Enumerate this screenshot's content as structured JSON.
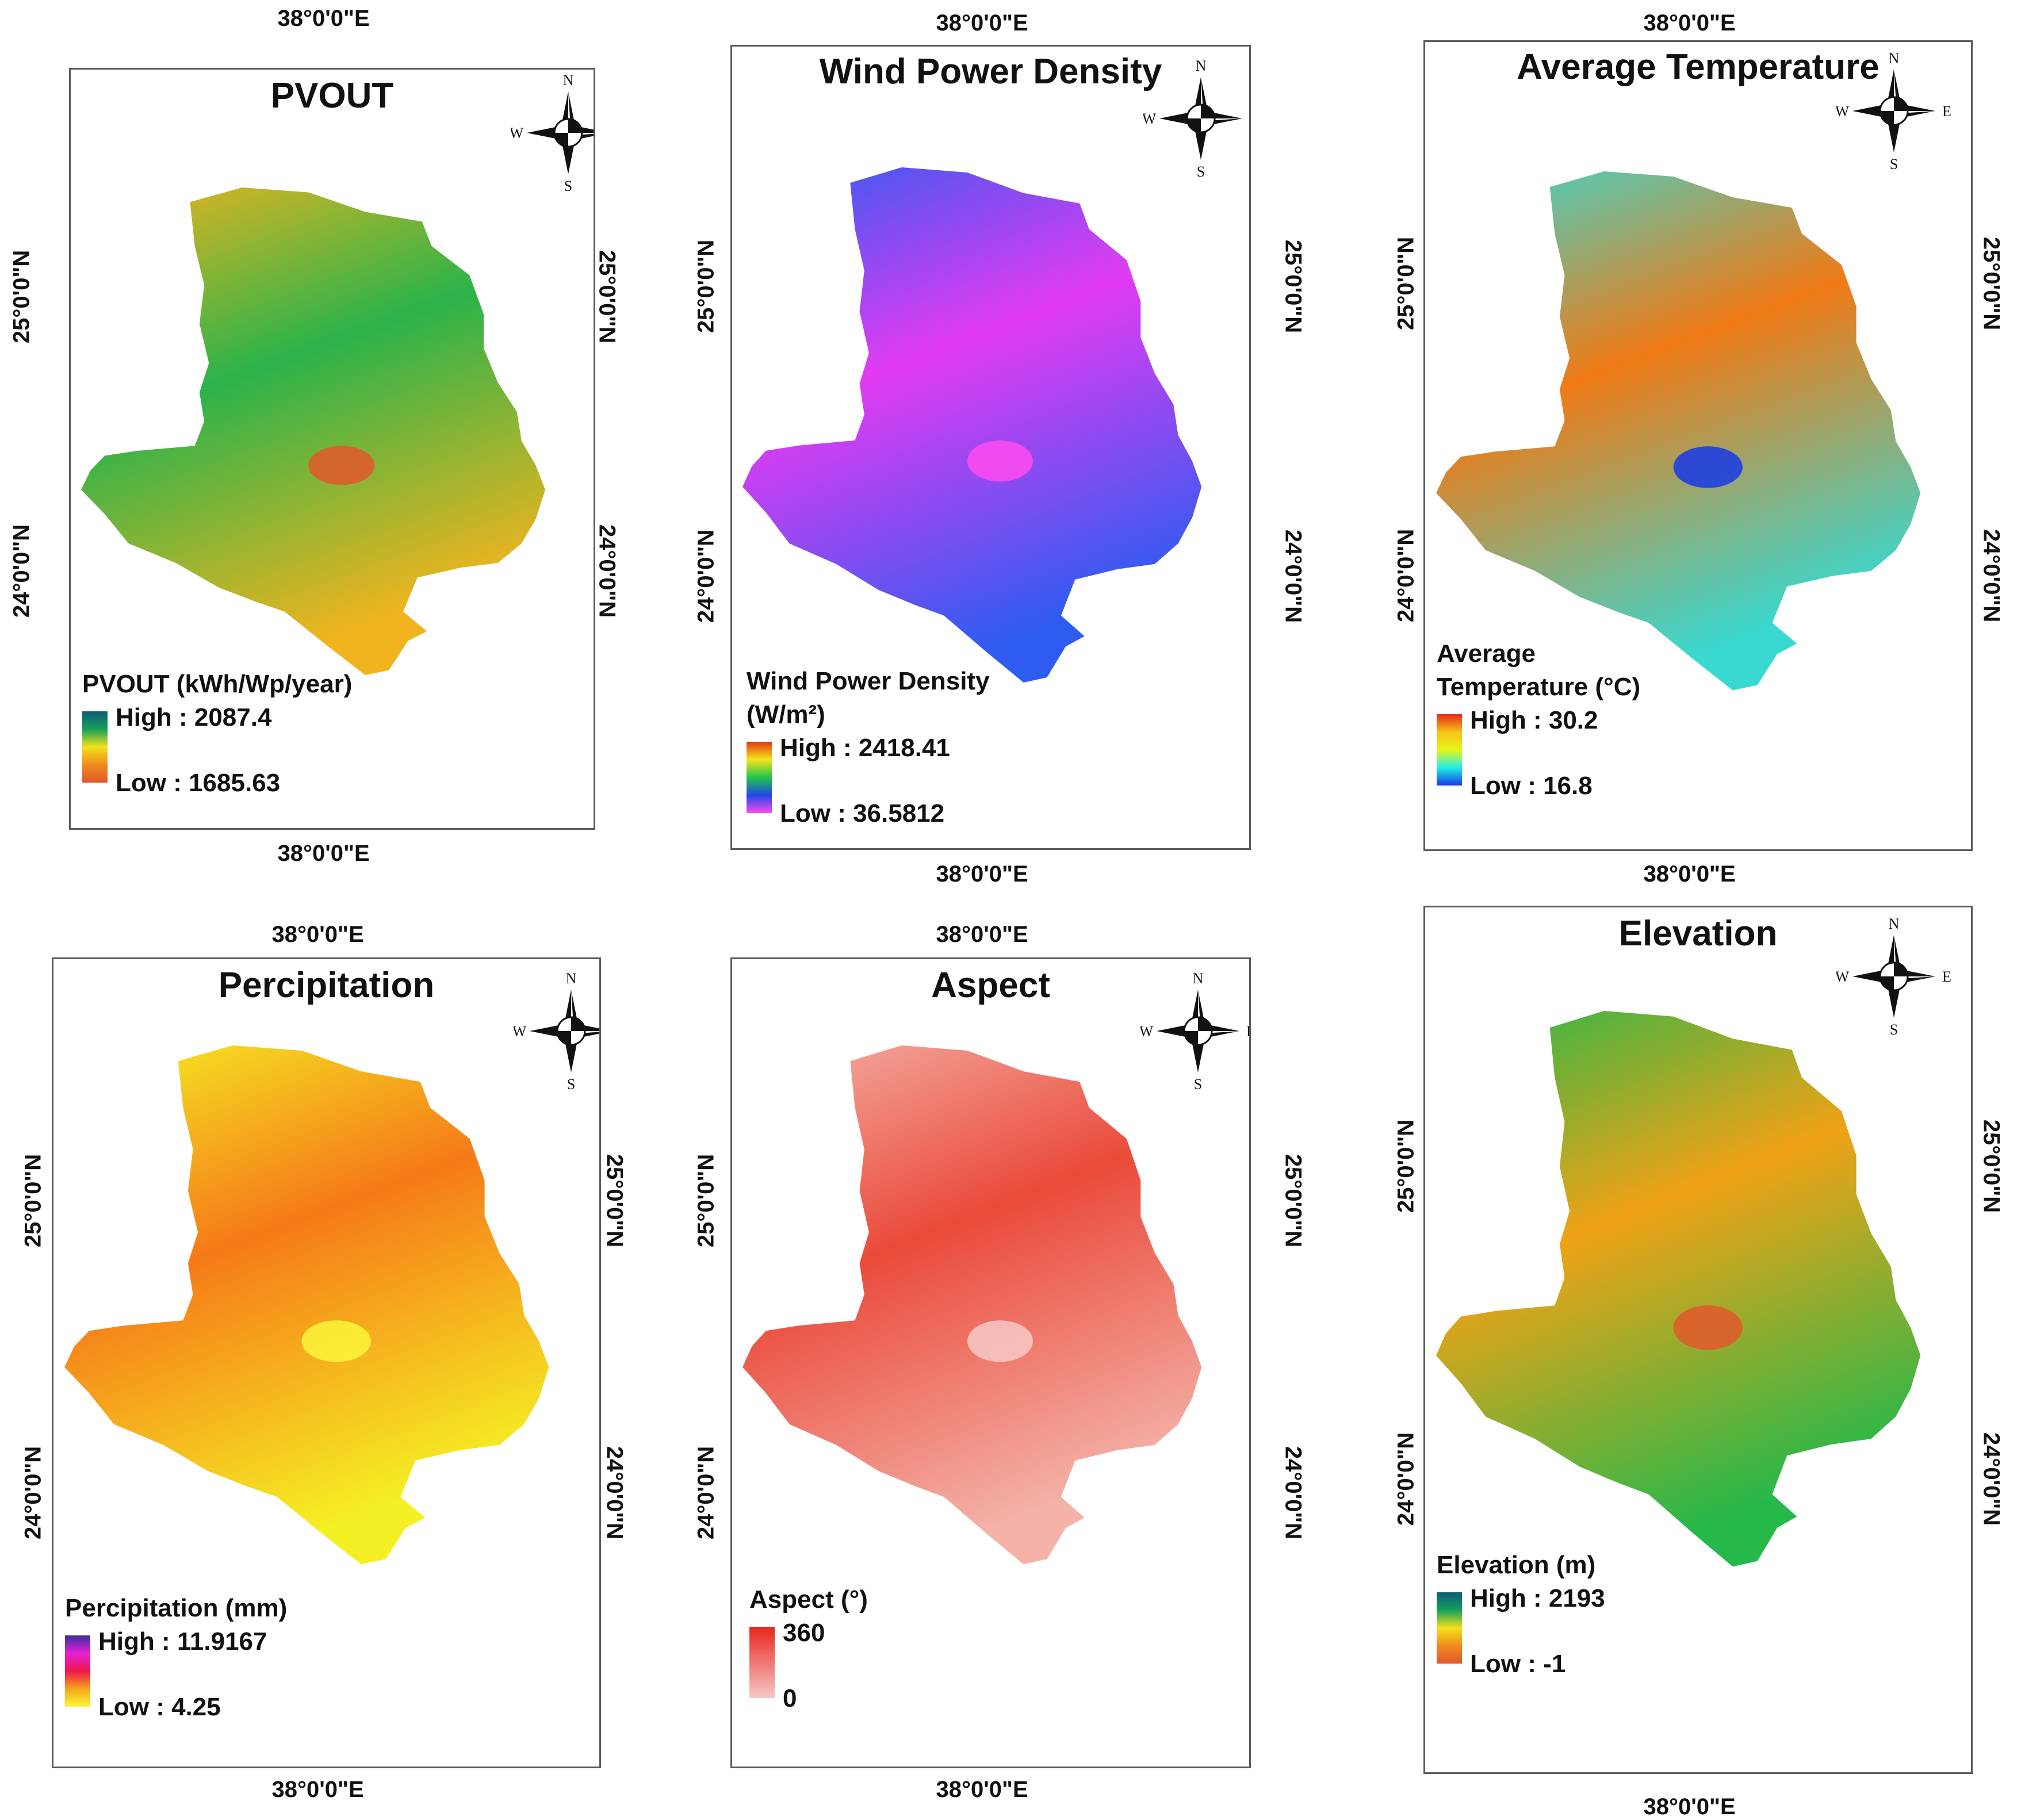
{
  "coords": {
    "lon": "38°0'0\"E",
    "lat_north": "25°0'0\"N",
    "lat_south": "24°0'0\"N"
  },
  "compass_letters": {
    "n": "N",
    "s": "S",
    "e": "E",
    "w": "W"
  },
  "panels": [
    {
      "title": "PVOUT",
      "legend_title": [
        "PVOUT (kWh/Wp/year)"
      ],
      "high": "High : 2087.4",
      "low": "Low : 1685.63",
      "ramp": [
        "#0d5c7a",
        "#15a05a",
        "#f3e21c",
        "#f08a1e",
        "#e2582c"
      ],
      "map_colors": [
        "#2bb34a",
        "#f2b41e"
      ]
    },
    {
      "title": "Wind Power Density",
      "legend_title": [
        "Wind Power Density",
        "(W/m²)"
      ],
      "high": "High : 2418.41",
      "low": "Low : 36.5812",
      "ramp": [
        "#e23a12",
        "#f4e51b",
        "#22c44a",
        "#1f47e8",
        "#ff4bf0"
      ],
      "map_colors": [
        "#e23bf2",
        "#2f5cf0"
      ]
    },
    {
      "title": "Average Temperature",
      "legend_title": [
        "Average",
        "Temperature (°C)"
      ],
      "high": "High : 30.2",
      "low": "Low : 16.8",
      "ramp": [
        "#e8291c",
        "#f5c21a",
        "#e9f51a",
        "#1ff0e6",
        "#1638e8"
      ],
      "map_colors": [
        "#f07a16",
        "#39d8d0"
      ]
    },
    {
      "title": "Percipitation",
      "legend_title": [
        "Percipitation (mm)"
      ],
      "high": "High : 11.9167",
      "low": "Low : 4.25",
      "ramp": [
        "#3a2d9c",
        "#e421d6",
        "#f0164a",
        "#f5a61a",
        "#fbf63a"
      ],
      "map_colors": [
        "#f57a18",
        "#f5f024"
      ]
    },
    {
      "title": "Aspect",
      "legend_title": [
        "Aspect (°)"
      ],
      "high": "360",
      "low": "0",
      "ramp": [
        "#e8271c",
        "#f6c8c8"
      ],
      "map_colors": [
        "#ea4a3a",
        "#f4b2a8"
      ]
    },
    {
      "title": "Elevation",
      "legend_title": [
        "Elevation (m)"
      ],
      "high": "High : 2193",
      "low": "Low : -1",
      "ramp": [
        "#0d5c7a",
        "#15a05a",
        "#f3e21c",
        "#f08a1e",
        "#e2582c"
      ],
      "map_colors": [
        "#f0a216",
        "#27b84a"
      ]
    }
  ]
}
